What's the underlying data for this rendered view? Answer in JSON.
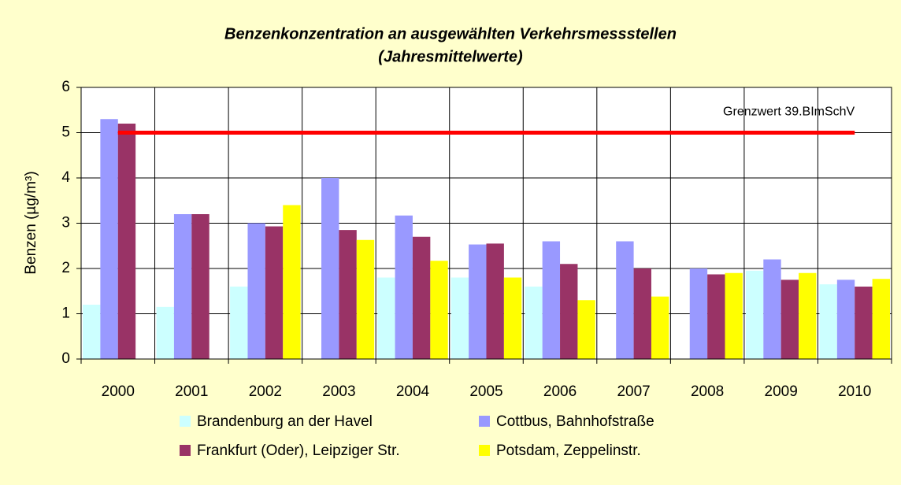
{
  "chart_data": {
    "type": "bar",
    "title": "Benzenkonzentration an ausgewählten Verkehrsmessstellen",
    "subtitle": "(Jahresmittelwerte)",
    "y_label": "Benzen (µg/m³)",
    "categories": [
      "2000",
      "2001",
      "2002",
      "2003",
      "2004",
      "2005",
      "2006",
      "2007",
      "2008",
      "2009",
      "2010"
    ],
    "series": [
      {
        "name": "Brandenburg an der Havel",
        "color": "#ccffff",
        "values": [
          1.2,
          1.15,
          1.6,
          null,
          1.8,
          1.8,
          1.6,
          null,
          null,
          1.95,
          1.65
        ]
      },
      {
        "name": "Cottbus, Bahnhofstraße",
        "color": "#9999ff",
        "values": [
          5.3,
          3.2,
          3.0,
          4.0,
          3.17,
          2.53,
          2.6,
          2.6,
          2.0,
          2.2,
          1.75
        ]
      },
      {
        "name": "Frankfurt (Oder), Leipziger Str.",
        "color": "#993366",
        "values": [
          5.2,
          3.2,
          2.93,
          2.85,
          2.7,
          2.55,
          2.1,
          2.0,
          1.87,
          1.75,
          1.6
        ]
      },
      {
        "name": "Potsdam, Zeppelinstr.",
        "color": "#ffff00",
        "values": [
          null,
          null,
          3.4,
          2.63,
          2.17,
          1.8,
          1.3,
          1.38,
          1.9,
          1.9,
          1.77
        ]
      }
    ],
    "limit": {
      "value": 5,
      "label": "Grenzwert 39.BImSchV",
      "color": "#ff0000"
    },
    "ylim": [
      0,
      6
    ],
    "yticks": [
      0,
      1,
      2,
      3,
      4,
      5,
      6
    ],
    "grid": true
  }
}
